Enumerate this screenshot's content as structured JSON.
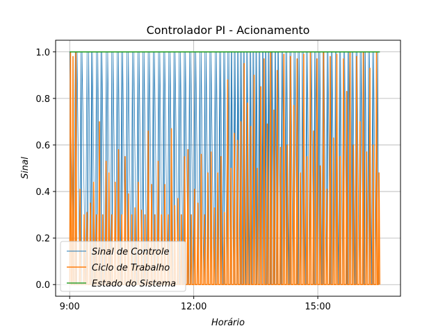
{
  "chart_data": {
    "type": "line",
    "title": "Controlador PI - Acionamento",
    "xlabel": "Horário",
    "ylabel": "Sinal",
    "xlim": [
      8.66,
      17.0
    ],
    "ylim": [
      -0.05,
      1.05
    ],
    "grid": true,
    "legend_position": "lower-left",
    "x_ticks": [
      {
        "value": 9,
        "label": "9:00"
      },
      {
        "value": 12,
        "label": "12:00"
      },
      {
        "value": 15,
        "label": "15:00"
      }
    ],
    "y_ticks": [
      {
        "value": 0.0,
        "label": "0.0"
      },
      {
        "value": 0.2,
        "label": "0.2"
      },
      {
        "value": 0.4,
        "label": "0.4"
      },
      {
        "value": 0.6,
        "label": "0.6"
      },
      {
        "value": 0.8,
        "label": "0.8"
      },
      {
        "value": 1.0,
        "label": "1.0"
      }
    ],
    "series": [
      {
        "name": "Sinal de Controle",
        "color": "#1f77b4",
        "description": "PI control signal oscillating between 0 and 1 over the day; dense switching, especially between 12:50 and 14:30",
        "x_range": [
          9.0,
          16.5
        ],
        "peak_times": [
          9.0,
          9.18,
          9.3,
          9.46,
          9.55,
          9.68,
          9.78,
          9.92,
          10.05,
          10.18,
          10.28,
          10.42,
          10.55,
          10.68,
          10.8,
          10.93,
          11.05,
          11.18,
          11.3,
          11.43,
          11.55,
          11.68,
          11.8,
          11.93,
          12.05,
          12.18,
          12.3,
          12.42,
          12.55,
          12.65,
          12.75,
          12.85,
          12.92,
          13.0,
          13.08,
          13.15,
          13.22,
          13.3,
          13.38,
          13.45,
          13.52,
          13.6,
          13.68,
          13.75,
          13.82,
          13.9,
          13.98,
          14.05,
          14.15,
          14.25,
          14.35,
          14.45,
          14.55,
          14.65,
          14.75,
          14.85,
          14.95,
          15.05,
          15.15,
          15.25,
          15.35,
          15.45,
          15.55,
          15.65,
          15.75,
          15.85,
          15.95,
          16.05,
          16.15,
          16.25,
          16.35,
          16.45
        ]
      },
      {
        "name": "Ciclo de Trabalho",
        "color": "#ff7f0e",
        "description": "Duty cycle: rapid pulses dropping to 0 between peaks of varying height",
        "x_range": [
          9.0,
          16.5
        ],
        "peaks": [
          {
            "x": 9.02,
            "y": 1.0
          },
          {
            "x": 9.08,
            "y": 0.98
          },
          {
            "x": 9.15,
            "y": 1.0
          },
          {
            "x": 9.25,
            "y": 0.41
          },
          {
            "x": 9.35,
            "y": 0.3
          },
          {
            "x": 9.42,
            "y": 0.31
          },
          {
            "x": 9.5,
            "y": 0.35
          },
          {
            "x": 9.58,
            "y": 0.44
          },
          {
            "x": 9.65,
            "y": 0.3
          },
          {
            "x": 9.72,
            "y": 0.7
          },
          {
            "x": 9.8,
            "y": 0.3
          },
          {
            "x": 9.88,
            "y": 0.53
          },
          {
            "x": 9.95,
            "y": 0.48
          },
          {
            "x": 10.02,
            "y": 0.3
          },
          {
            "x": 10.1,
            "y": 0.44
          },
          {
            "x": 10.18,
            "y": 0.58
          },
          {
            "x": 10.26,
            "y": 0.3
          },
          {
            "x": 10.34,
            "y": 0.55
          },
          {
            "x": 10.42,
            "y": 0.39
          },
          {
            "x": 10.5,
            "y": 0.3
          },
          {
            "x": 10.58,
            "y": 0.33
          },
          {
            "x": 10.66,
            "y": 0.44
          },
          {
            "x": 10.74,
            "y": 0.32
          },
          {
            "x": 10.82,
            "y": 0.3
          },
          {
            "x": 10.9,
            "y": 0.66
          },
          {
            "x": 10.98,
            "y": 0.43
          },
          {
            "x": 11.06,
            "y": 0.3
          },
          {
            "x": 11.14,
            "y": 0.53
          },
          {
            "x": 11.22,
            "y": 0.3
          },
          {
            "x": 11.3,
            "y": 0.43
          },
          {
            "x": 11.38,
            "y": 0.3
          },
          {
            "x": 11.46,
            "y": 0.67
          },
          {
            "x": 11.54,
            "y": 0.34
          },
          {
            "x": 11.62,
            "y": 0.37
          },
          {
            "x": 11.7,
            "y": 0.3
          },
          {
            "x": 11.78,
            "y": 0.55
          },
          {
            "x": 11.86,
            "y": 0.58
          },
          {
            "x": 11.94,
            "y": 0.3
          },
          {
            "x": 12.02,
            "y": 0.41
          },
          {
            "x": 12.1,
            "y": 0.35
          },
          {
            "x": 12.18,
            "y": 0.56
          },
          {
            "x": 12.26,
            "y": 0.3
          },
          {
            "x": 12.34,
            "y": 0.48
          },
          {
            "x": 12.42,
            "y": 0.57
          },
          {
            "x": 12.5,
            "y": 0.33
          },
          {
            "x": 12.58,
            "y": 0.48
          },
          {
            "x": 12.66,
            "y": 0.55
          },
          {
            "x": 12.74,
            "y": 0.31
          },
          {
            "x": 12.82,
            "y": 0.88
          },
          {
            "x": 12.9,
            "y": 0.5
          },
          {
            "x": 12.98,
            "y": 0.65
          },
          {
            "x": 13.06,
            "y": 0.62
          },
          {
            "x": 13.14,
            "y": 0.7
          },
          {
            "x": 13.22,
            "y": 0.95
          },
          {
            "x": 13.3,
            "y": 0.78
          },
          {
            "x": 13.38,
            "y": 0.68
          },
          {
            "x": 13.46,
            "y": 0.9
          },
          {
            "x": 13.54,
            "y": 0.5
          },
          {
            "x": 13.62,
            "y": 0.85
          },
          {
            "x": 13.7,
            "y": 0.97
          },
          {
            "x": 13.78,
            "y": 0.69
          },
          {
            "x": 13.86,
            "y": 1.0
          },
          {
            "x": 13.94,
            "y": 0.75
          },
          {
            "x": 14.02,
            "y": 0.92
          },
          {
            "x": 14.1,
            "y": 0.59
          },
          {
            "x": 14.18,
            "y": 0.99
          },
          {
            "x": 14.26,
            "y": 0.6
          },
          {
            "x": 14.34,
            "y": 0.98
          },
          {
            "x": 14.42,
            "y": 0.77
          },
          {
            "x": 14.5,
            "y": 0.97
          },
          {
            "x": 14.58,
            "y": 0.48
          },
          {
            "x": 14.66,
            "y": 0.99
          },
          {
            "x": 14.74,
            "y": 0.55
          },
          {
            "x": 14.82,
            "y": 1.0
          },
          {
            "x": 14.9,
            "y": 0.66
          },
          {
            "x": 14.98,
            "y": 0.97
          },
          {
            "x": 15.06,
            "y": 0.51
          },
          {
            "x": 15.14,
            "y": 1.0
          },
          {
            "x": 15.22,
            "y": 0.41
          },
          {
            "x": 15.3,
            "y": 0.98
          },
          {
            "x": 15.38,
            "y": 0.63
          },
          {
            "x": 15.46,
            "y": 0.99
          },
          {
            "x": 15.54,
            "y": 0.55
          },
          {
            "x": 15.62,
            "y": 0.97
          },
          {
            "x": 15.7,
            "y": 0.83
          },
          {
            "x": 15.78,
            "y": 1.0
          },
          {
            "x": 15.86,
            "y": 0.6
          },
          {
            "x": 15.94,
            "y": 0.98
          },
          {
            "x": 16.02,
            "y": 0.7
          },
          {
            "x": 16.1,
            "y": 1.0
          },
          {
            "x": 16.18,
            "y": 0.57
          },
          {
            "x": 16.26,
            "y": 0.93
          },
          {
            "x": 16.34,
            "y": 0.6
          },
          {
            "x": 16.42,
            "y": 1.0
          },
          {
            "x": 16.48,
            "y": 0.48
          }
        ]
      },
      {
        "name": "Estado do Sistema",
        "color": "#2ca02c",
        "x": [
          9.0,
          16.5
        ],
        "y": [
          1.0,
          1.0
        ]
      }
    ]
  }
}
